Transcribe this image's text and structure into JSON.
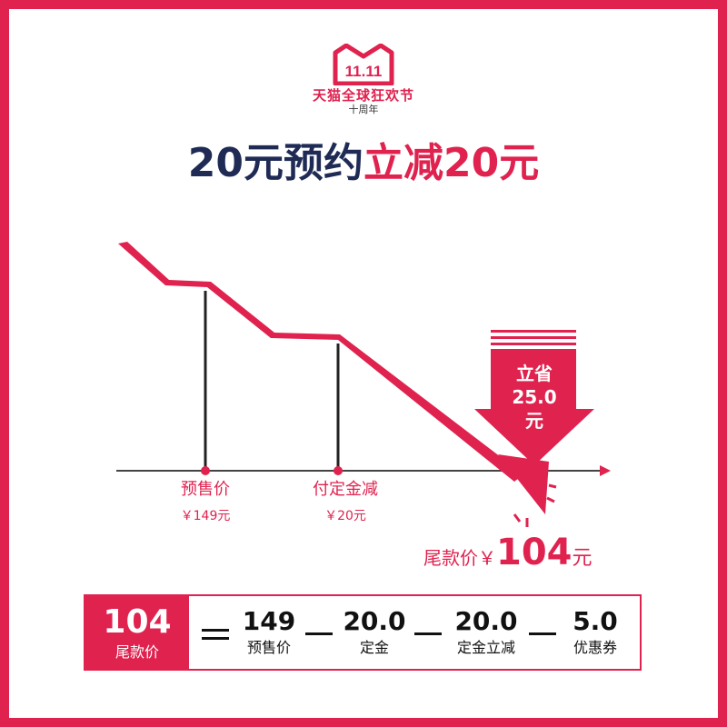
{
  "logo": {
    "name": "天猫全球狂欢节",
    "subtitle": "十周年",
    "badge": "11.11"
  },
  "headline": {
    "part1": "20元预约",
    "part2": "立减20元"
  },
  "points": [
    {
      "name": "预售价",
      "value": "￥149元"
    },
    {
      "name": "付定金减",
      "value": "￥20元"
    }
  ],
  "save_box": {
    "line1": "立省",
    "line2": "25.0",
    "line3": "元"
  },
  "final_price": {
    "label": "尾款价￥",
    "value": "104",
    "unit": "元"
  },
  "summary": {
    "result_value": "104",
    "result_label": "尾款价",
    "items": [
      {
        "value": "149",
        "label": "预售价"
      },
      {
        "value": "20.0",
        "label": "定金"
      },
      {
        "value": "20.0",
        "label": "定金立减"
      },
      {
        "value": "5.0",
        "label": "优惠券"
      }
    ]
  },
  "colors": {
    "accent": "#e0224f",
    "dark_text": "#1f2b55"
  }
}
